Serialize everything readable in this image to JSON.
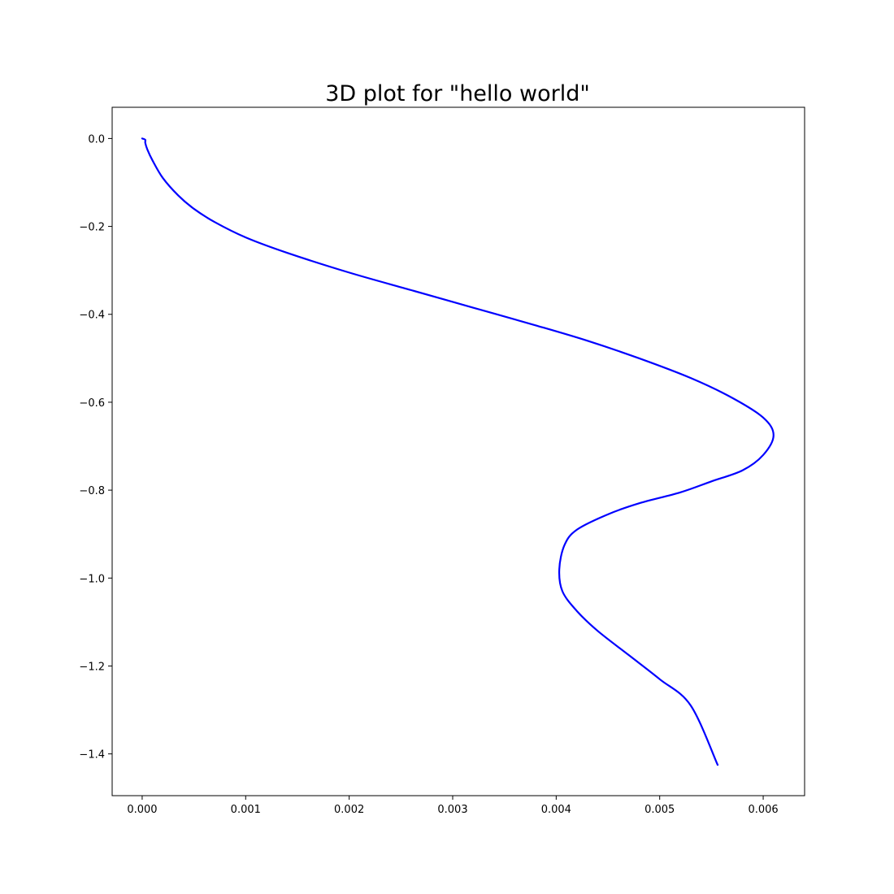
{
  "chart_data": {
    "type": "line",
    "title": "3D plot for \"hello world\"",
    "xlabel": "",
    "ylabel": "",
    "xlim": [
      -0.00029,
      0.0064
    ],
    "ylim": [
      -1.495,
      0.071
    ],
    "xticks": [
      0.0,
      0.001,
      0.002,
      0.003,
      0.004,
      0.005,
      0.006
    ],
    "xtick_labels": [
      "0.000",
      "0.001",
      "0.002",
      "0.003",
      "0.004",
      "0.005",
      "0.006"
    ],
    "yticks": [
      0.0,
      -0.2,
      -0.4,
      -0.6,
      -0.8,
      -1.0,
      -1.2,
      -1.4
    ],
    "ytick_labels": [
      "0.0",
      "−0.2",
      "−0.4",
      "−0.6",
      "−0.8",
      "−1.0",
      "−1.2",
      "−1.4"
    ],
    "grid": false,
    "series": [
      {
        "color": "#0000ff",
        "x": [
          0.0,
          3e-05,
          3e-05,
          5e-05,
          0.0001,
          0.0002,
          0.00035,
          0.0005,
          0.0007,
          0.001,
          0.0014,
          0.002,
          0.0026,
          0.0032,
          0.0038,
          0.0043,
          0.0048,
          0.0053,
          0.0057,
          0.006,
          0.0061,
          0.006,
          0.0058,
          0.0055,
          0.0052,
          0.0048,
          0.0045,
          0.0042,
          0.00408,
          0.00403,
          0.00406,
          0.0042,
          0.0044,
          0.0047,
          0.005,
          0.0053,
          0.00556
        ],
        "y": [
          0.0,
          -0.003,
          -0.01,
          -0.025,
          -0.05,
          -0.09,
          -0.13,
          -0.16,
          -0.19,
          -0.225,
          -0.26,
          -0.305,
          -0.345,
          -0.385,
          -0.425,
          -0.46,
          -0.5,
          -0.545,
          -0.59,
          -0.635,
          -0.675,
          -0.72,
          -0.755,
          -0.78,
          -0.805,
          -0.83,
          -0.855,
          -0.89,
          -0.925,
          -0.98,
          -1.03,
          -1.075,
          -1.12,
          -1.175,
          -1.23,
          -1.29,
          -1.425
        ]
      }
    ]
  }
}
